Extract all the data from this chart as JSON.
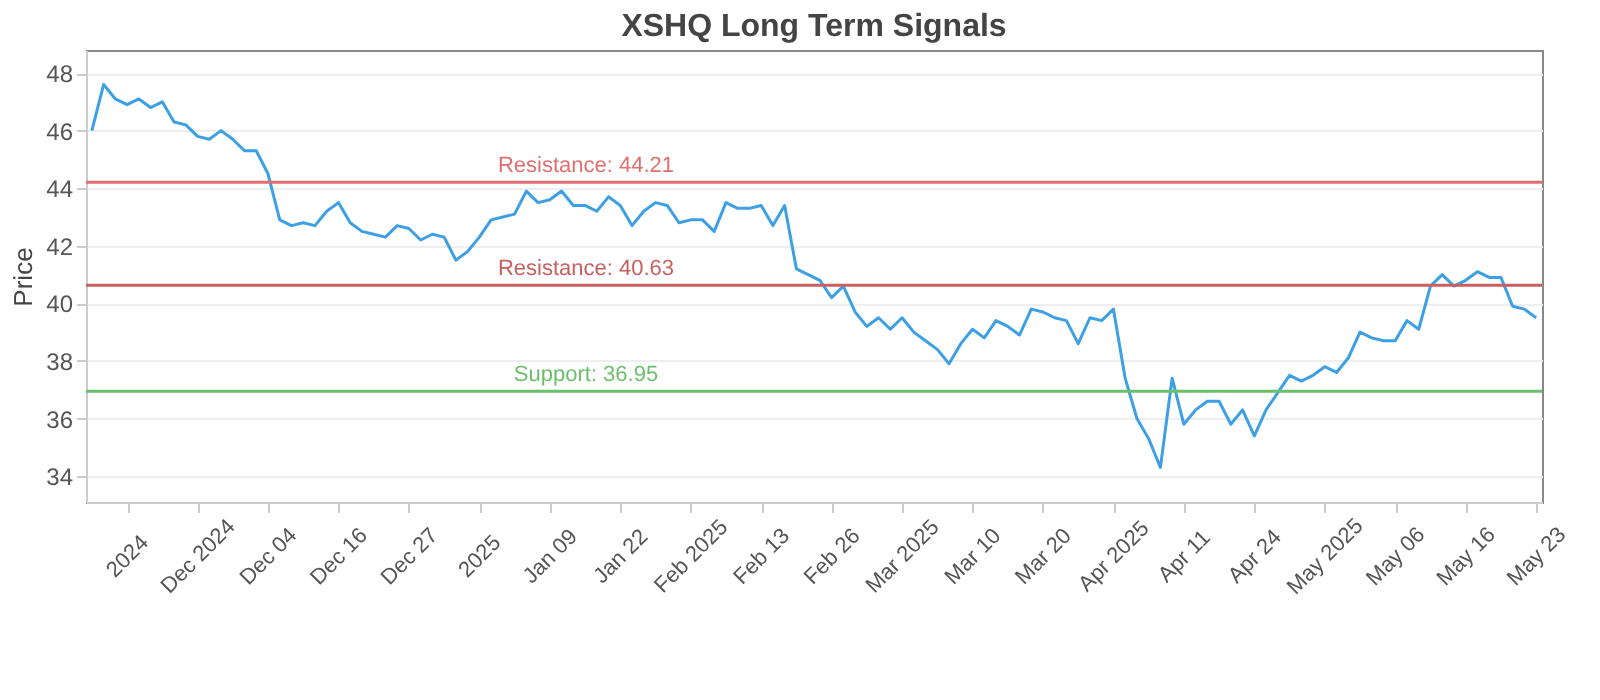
{
  "chart_data": {
    "type": "line",
    "title": "XSHQ Long Term Signals",
    "ylabel": "Price",
    "categories": [
      null,
      null,
      null,
      "2024",
      null,
      null,
      null,
      null,
      null,
      "Dec 2024",
      null,
      null,
      null,
      null,
      null,
      "Dec 04",
      null,
      null,
      null,
      null,
      null,
      "Dec 16",
      null,
      null,
      null,
      null,
      null,
      "Dec 27",
      null,
      null,
      null,
      null,
      null,
      "2025",
      null,
      null,
      null,
      null,
      null,
      "Jan 09",
      null,
      null,
      null,
      null,
      null,
      "Jan 22",
      null,
      null,
      null,
      null,
      null,
      "Feb 2025",
      null,
      null,
      null,
      null,
      null,
      "Feb 13",
      null,
      null,
      null,
      null,
      null,
      "Feb 26",
      null,
      null,
      null,
      null,
      null,
      "Mar 2025",
      null,
      null,
      null,
      null,
      null,
      "Mar 10",
      null,
      null,
      null,
      null,
      null,
      "Mar 20",
      null,
      null,
      null,
      null,
      null,
      "Apr 2025",
      null,
      null,
      null,
      null,
      null,
      "Apr 11",
      null,
      null,
      null,
      null,
      null,
      "Apr 24",
      null,
      null,
      null,
      null,
      null,
      "May 2025",
      null,
      null,
      null,
      null,
      null,
      "May 06",
      null,
      null,
      null,
      null,
      null,
      "May 16",
      null,
      null,
      null,
      null,
      null,
      "May 23"
    ],
    "values": [
      46.0,
      47.6,
      47.1,
      46.9,
      47.1,
      46.8,
      47.0,
      46.3,
      46.2,
      45.8,
      45.7,
      46.0,
      45.7,
      45.3,
      45.3,
      44.5,
      42.9,
      42.7,
      42.8,
      42.7,
      43.2,
      43.5,
      42.8,
      42.5,
      42.4,
      42.3,
      42.7,
      42.6,
      42.2,
      42.4,
      42.3,
      41.5,
      41.8,
      42.3,
      42.9,
      43.0,
      43.1,
      43.9,
      43.5,
      43.6,
      43.9,
      43.4,
      43.4,
      43.2,
      43.7,
      43.4,
      42.7,
      43.2,
      43.5,
      43.4,
      42.8,
      42.9,
      42.9,
      42.5,
      43.5,
      43.3,
      43.3,
      43.4,
      42.7,
      43.4,
      41.2,
      41.0,
      40.8,
      40.2,
      40.6,
      39.7,
      39.2,
      39.5,
      39.1,
      39.5,
      39.0,
      38.7,
      38.4,
      37.9,
      38.6,
      39.1,
      38.8,
      39.4,
      39.2,
      38.9,
      39.8,
      39.7,
      39.5,
      39.4,
      38.6,
      39.5,
      39.4,
      39.8,
      37.4,
      36.0,
      35.3,
      34.3,
      37.4,
      35.8,
      36.3,
      36.6,
      36.6,
      35.8,
      36.3,
      35.4,
      36.3,
      36.9,
      37.5,
      37.3,
      37.5,
      37.8,
      37.6,
      38.1,
      39.0,
      38.8,
      38.7,
      38.7,
      39.4,
      39.1,
      40.6,
      41.0,
      40.6,
      40.8,
      41.1,
      40.9,
      40.9,
      39.9,
      39.8,
      39.5
    ],
    "color": "#3ea0e4",
    "ylim": [
      33.1,
      48.8
    ],
    "yticks": [
      34,
      36,
      38,
      40,
      42,
      44,
      46,
      48
    ],
    "grid": "y",
    "ref_lines": [
      {
        "axis": "y",
        "value": 44.21,
        "label": "Resistance: 44.21",
        "color": "#e07070"
      },
      {
        "axis": "y",
        "value": 40.63,
        "label": "Resistance: 40.63",
        "color": "#c96060"
      },
      {
        "axis": "y",
        "value": 36.95,
        "label": "Support: 36.95",
        "color": "#6cbf6c"
      }
    ]
  }
}
